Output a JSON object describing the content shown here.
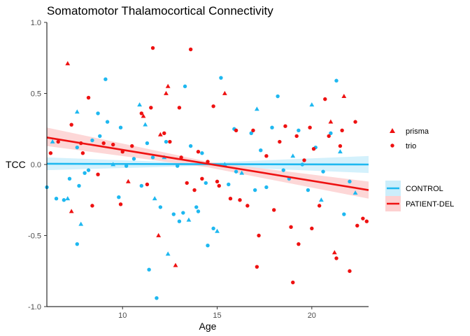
{
  "chart_data": {
    "type": "scatter",
    "title": "Somatomotor Thalamocortical Connectivity",
    "xlabel": "Age",
    "ylabel": "TCC",
    "xlim": [
      6.0,
      23.0
    ],
    "ylim": [
      -1.0,
      1.0
    ],
    "xticks": [
      10,
      15,
      20
    ],
    "yticks": [
      -1.0,
      -0.5,
      0.0,
      0.5,
      1.0
    ],
    "ytick_labels": [
      "-1.0",
      "-0.5",
      "0.0",
      "0.5",
      "1.0"
    ],
    "colors": {
      "control": "#1eb8f0",
      "patient": "#ee1111",
      "control_band": "#cceefb",
      "patient_band": "#fdd0d0"
    },
    "shape_legend": [
      {
        "label": "prisma",
        "shape": "triangle"
      },
      {
        "label": "trio",
        "shape": "circle"
      }
    ],
    "series": [
      {
        "name": "CONTROL",
        "key": "control",
        "fit": {
          "x": [
            6.0,
            23.0
          ],
          "y": [
            0.005,
            0.0
          ]
        },
        "band": {
          "x": [
            6.0,
            14.0,
            23.0
          ],
          "lower": [
            -0.04,
            -0.01,
            -0.06
          ],
          "upper": [
            0.05,
            0.01,
            0.06
          ]
        },
        "points": [
          {
            "x": 6.0,
            "y": -0.16,
            "s": "c"
          },
          {
            "x": 6.3,
            "y": 0.16,
            "s": "t"
          },
          {
            "x": 6.5,
            "y": -0.24,
            "s": "c"
          },
          {
            "x": 6.9,
            "y": -0.25,
            "s": "c"
          },
          {
            "x": 7.1,
            "y": -0.24,
            "s": "t"
          },
          {
            "x": 7.2,
            "y": -0.1,
            "s": "c"
          },
          {
            "x": 7.6,
            "y": 0.37,
            "s": "t"
          },
          {
            "x": 7.6,
            "y": 0.12,
            "s": "c"
          },
          {
            "x": 7.7,
            "y": -0.15,
            "s": "c"
          },
          {
            "x": 7.6,
            "y": -0.56,
            "s": "c"
          },
          {
            "x": 7.8,
            "y": -0.42,
            "s": "t"
          },
          {
            "x": 8.0,
            "y": -0.06,
            "s": "c"
          },
          {
            "x": 8.2,
            "y": -0.04,
            "s": "c"
          },
          {
            "x": 8.4,
            "y": 0.17,
            "s": "c"
          },
          {
            "x": 8.7,
            "y": 0.36,
            "s": "c"
          },
          {
            "x": 8.8,
            "y": 0.2,
            "s": "c"
          },
          {
            "x": 9.1,
            "y": 0.6,
            "s": "c"
          },
          {
            "x": 9.2,
            "y": 0.3,
            "s": "c"
          },
          {
            "x": 9.5,
            "y": 0.0,
            "s": "t"
          },
          {
            "x": 9.8,
            "y": -0.23,
            "s": "c"
          },
          {
            "x": 9.9,
            "y": 0.26,
            "s": "c"
          },
          {
            "x": 10.2,
            "y": -0.01,
            "s": "c"
          },
          {
            "x": 10.6,
            "y": 0.04,
            "s": "c"
          },
          {
            "x": 10.9,
            "y": 0.42,
            "s": "t"
          },
          {
            "x": 11.0,
            "y": -0.15,
            "s": "c"
          },
          {
            "x": 11.2,
            "y": 0.28,
            "s": "t"
          },
          {
            "x": 11.3,
            "y": 0.15,
            "s": "c"
          },
          {
            "x": 11.4,
            "y": -0.74,
            "s": "c"
          },
          {
            "x": 11.6,
            "y": 0.05,
            "s": "c"
          },
          {
            "x": 11.7,
            "y": -0.24,
            "s": "t"
          },
          {
            "x": 11.8,
            "y": -0.94,
            "s": "c"
          },
          {
            "x": 12.0,
            "y": -0.3,
            "s": "c"
          },
          {
            "x": 12.2,
            "y": 0.05,
            "s": "t"
          },
          {
            "x": 12.3,
            "y": 0.16,
            "s": "c"
          },
          {
            "x": 12.4,
            "y": -0.63,
            "s": "t"
          },
          {
            "x": 12.7,
            "y": -0.35,
            "s": "c"
          },
          {
            "x": 12.9,
            "y": -0.01,
            "s": "c"
          },
          {
            "x": 13.0,
            "y": -0.4,
            "s": "c"
          },
          {
            "x": 13.2,
            "y": -0.34,
            "s": "c"
          },
          {
            "x": 13.3,
            "y": 0.55,
            "s": "c"
          },
          {
            "x": 13.5,
            "y": -0.39,
            "s": "t"
          },
          {
            "x": 13.6,
            "y": 0.13,
            "s": "c"
          },
          {
            "x": 13.9,
            "y": -0.3,
            "s": "c"
          },
          {
            "x": 14.0,
            "y": -0.33,
            "s": "c"
          },
          {
            "x": 14.2,
            "y": 0.08,
            "s": "c"
          },
          {
            "x": 14.4,
            "y": -0.13,
            "s": "c"
          },
          {
            "x": 14.5,
            "y": -0.57,
            "s": "c"
          },
          {
            "x": 14.8,
            "y": -0.45,
            "s": "c"
          },
          {
            "x": 15.0,
            "y": -0.47,
            "s": "t"
          },
          {
            "x": 15.2,
            "y": 0.61,
            "s": "c"
          },
          {
            "x": 15.4,
            "y": 0.0,
            "s": "t"
          },
          {
            "x": 15.6,
            "y": -0.14,
            "s": "c"
          },
          {
            "x": 15.9,
            "y": 0.25,
            "s": "c"
          },
          {
            "x": 16.0,
            "y": -0.05,
            "s": "c"
          },
          {
            "x": 16.3,
            "y": -0.06,
            "s": "t"
          },
          {
            "x": 16.8,
            "y": 0.22,
            "s": "c"
          },
          {
            "x": 17.0,
            "y": -0.18,
            "s": "c"
          },
          {
            "x": 17.1,
            "y": 0.39,
            "s": "t"
          },
          {
            "x": 17.3,
            "y": 0.1,
            "s": "c"
          },
          {
            "x": 17.6,
            "y": -0.16,
            "s": "c"
          },
          {
            "x": 17.9,
            "y": 0.26,
            "s": "c"
          },
          {
            "x": 18.2,
            "y": 0.48,
            "s": "c"
          },
          {
            "x": 18.5,
            "y": -0.04,
            "s": "c"
          },
          {
            "x": 18.8,
            "y": -0.1,
            "s": "c"
          },
          {
            "x": 19.0,
            "y": 0.06,
            "s": "t"
          },
          {
            "x": 19.3,
            "y": 0.24,
            "s": "c"
          },
          {
            "x": 19.5,
            "y": 0.0,
            "s": "c"
          },
          {
            "x": 19.8,
            "y": -0.18,
            "s": "c"
          },
          {
            "x": 20.0,
            "y": 0.42,
            "s": "t"
          },
          {
            "x": 20.2,
            "y": 0.12,
            "s": "c"
          },
          {
            "x": 20.5,
            "y": -0.25,
            "s": "t"
          },
          {
            "x": 20.6,
            "y": -0.05,
            "s": "c"
          },
          {
            "x": 21.0,
            "y": 0.22,
            "s": "c"
          },
          {
            "x": 21.3,
            "y": 0.59,
            "s": "c"
          },
          {
            "x": 21.5,
            "y": 0.09,
            "s": "t"
          },
          {
            "x": 21.7,
            "y": -0.35,
            "s": "c"
          },
          {
            "x": 22.0,
            "y": -0.12,
            "s": "c"
          },
          {
            "x": 22.3,
            "y": -0.2,
            "s": "t"
          }
        ]
      },
      {
        "name": "PATIENT-DEL",
        "key": "patient",
        "fit": {
          "x": [
            6.0,
            23.0
          ],
          "y": [
            0.19,
            -0.18
          ]
        },
        "band": {
          "x": [
            6.0,
            14.5,
            23.0
          ],
          "lower": [
            0.13,
            -0.02,
            -0.24
          ],
          "upper": [
            0.26,
            0.02,
            -0.12
          ]
        },
        "points": [
          {
            "x": 6.2,
            "y": 0.08,
            "s": "c"
          },
          {
            "x": 6.6,
            "y": 0.16,
            "s": "c"
          },
          {
            "x": 7.1,
            "y": 0.71,
            "s": "t"
          },
          {
            "x": 7.3,
            "y": 0.28,
            "s": "c"
          },
          {
            "x": 7.3,
            "y": -0.33,
            "s": "t"
          },
          {
            "x": 7.8,
            "y": 0.15,
            "s": "c"
          },
          {
            "x": 7.9,
            "y": 0.08,
            "s": "c"
          },
          {
            "x": 8.2,
            "y": 0.47,
            "s": "c"
          },
          {
            "x": 8.4,
            "y": -0.29,
            "s": "c"
          },
          {
            "x": 8.7,
            "y": -0.07,
            "s": "c"
          },
          {
            "x": 9.0,
            "y": 0.15,
            "s": "c"
          },
          {
            "x": 9.5,
            "y": 0.14,
            "s": "c"
          },
          {
            "x": 9.9,
            "y": -0.28,
            "s": "c"
          },
          {
            "x": 10.0,
            "y": 0.09,
            "s": "c"
          },
          {
            "x": 10.3,
            "y": -0.12,
            "s": "t"
          },
          {
            "x": 10.5,
            "y": 0.13,
            "s": "c"
          },
          {
            "x": 11.0,
            "y": 0.36,
            "s": "c"
          },
          {
            "x": 11.1,
            "y": 0.34,
            "s": "t"
          },
          {
            "x": 11.3,
            "y": -0.14,
            "s": "c"
          },
          {
            "x": 11.5,
            "y": 0.4,
            "s": "c"
          },
          {
            "x": 11.6,
            "y": 0.82,
            "s": "c"
          },
          {
            "x": 11.9,
            "y": -0.5,
            "s": "t"
          },
          {
            "x": 12.0,
            "y": 0.21,
            "s": "t"
          },
          {
            "x": 12.2,
            "y": 0.22,
            "s": "c"
          },
          {
            "x": 12.3,
            "y": 0.5,
            "s": "t"
          },
          {
            "x": 12.4,
            "y": 0.55,
            "s": "t"
          },
          {
            "x": 12.5,
            "y": 0.16,
            "s": "c"
          },
          {
            "x": 12.8,
            "y": -0.71,
            "s": "t"
          },
          {
            "x": 13.0,
            "y": 0.4,
            "s": "c"
          },
          {
            "x": 13.1,
            "y": 0.05,
            "s": "c"
          },
          {
            "x": 13.4,
            "y": -0.13,
            "s": "c"
          },
          {
            "x": 13.6,
            "y": 0.81,
            "s": "c"
          },
          {
            "x": 13.8,
            "y": -0.18,
            "s": "c"
          },
          {
            "x": 14.0,
            "y": 0.09,
            "s": "c"
          },
          {
            "x": 14.2,
            "y": -0.1,
            "s": "c"
          },
          {
            "x": 14.5,
            "y": 0.02,
            "s": "c"
          },
          {
            "x": 14.8,
            "y": 0.41,
            "s": "c"
          },
          {
            "x": 15.0,
            "y": -0.12,
            "s": "c"
          },
          {
            "x": 15.1,
            "y": -0.15,
            "s": "c"
          },
          {
            "x": 15.4,
            "y": 0.5,
            "s": "t"
          },
          {
            "x": 15.7,
            "y": -0.24,
            "s": "c"
          },
          {
            "x": 16.0,
            "y": 0.24,
            "s": "c"
          },
          {
            "x": 16.2,
            "y": -0.25,
            "s": "c"
          },
          {
            "x": 16.6,
            "y": -0.29,
            "s": "c"
          },
          {
            "x": 16.9,
            "y": 0.24,
            "s": "c"
          },
          {
            "x": 17.1,
            "y": -0.72,
            "s": "c"
          },
          {
            "x": 17.2,
            "y": -0.5,
            "s": "c"
          },
          {
            "x": 17.6,
            "y": 0.06,
            "s": "c"
          },
          {
            "x": 18.0,
            "y": -0.32,
            "s": "c"
          },
          {
            "x": 18.3,
            "y": 0.16,
            "s": "c"
          },
          {
            "x": 18.6,
            "y": 0.27,
            "s": "c"
          },
          {
            "x": 18.9,
            "y": -0.44,
            "s": "c"
          },
          {
            "x": 19.0,
            "y": -0.83,
            "s": "c"
          },
          {
            "x": 19.2,
            "y": 0.2,
            "s": "c"
          },
          {
            "x": 19.3,
            "y": -0.56,
            "s": "c"
          },
          {
            "x": 19.6,
            "y": 0.03,
            "s": "c"
          },
          {
            "x": 19.9,
            "y": 0.26,
            "s": "c"
          },
          {
            "x": 20.0,
            "y": -0.45,
            "s": "c"
          },
          {
            "x": 20.1,
            "y": 0.11,
            "s": "c"
          },
          {
            "x": 20.4,
            "y": -0.29,
            "s": "c"
          },
          {
            "x": 20.7,
            "y": 0.46,
            "s": "c"
          },
          {
            "x": 20.9,
            "y": 0.2,
            "s": "c"
          },
          {
            "x": 21.0,
            "y": 0.3,
            "s": "t"
          },
          {
            "x": 21.2,
            "y": -0.62,
            "s": "t"
          },
          {
            "x": 21.3,
            "y": -0.66,
            "s": "c"
          },
          {
            "x": 21.5,
            "y": 0.13,
            "s": "c"
          },
          {
            "x": 21.6,
            "y": 0.24,
            "s": "c"
          },
          {
            "x": 21.7,
            "y": 0.48,
            "s": "t"
          },
          {
            "x": 22.0,
            "y": -0.75,
            "s": "c"
          },
          {
            "x": 22.3,
            "y": 0.3,
            "s": "c"
          },
          {
            "x": 22.4,
            "y": -0.43,
            "s": "c"
          },
          {
            "x": 22.7,
            "y": -0.38,
            "s": "c"
          },
          {
            "x": 22.9,
            "y": -0.4,
            "s": "c"
          }
        ]
      }
    ]
  }
}
